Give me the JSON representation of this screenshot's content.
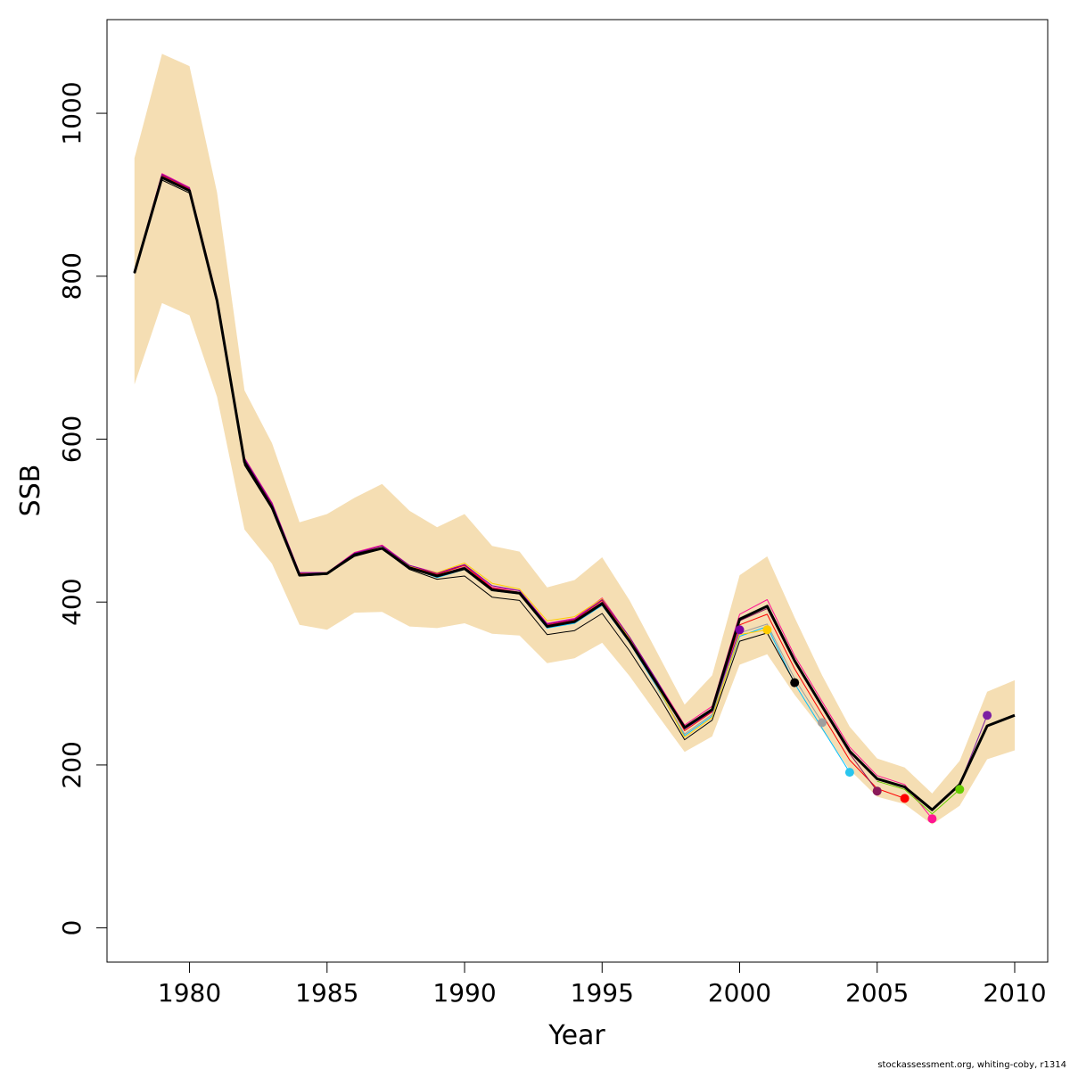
{
  "chart_data": {
    "type": "line",
    "xlabel": "Year",
    "ylabel": "SSB",
    "xlim": [
      1977,
      2011.2
    ],
    "ylim": [
      -42,
      1115
    ],
    "x_ticks": [
      1980,
      1985,
      1990,
      1995,
      2000,
      2005,
      2010
    ],
    "y_ticks": [
      0,
      200,
      400,
      600,
      800,
      1000
    ],
    "grid": false,
    "legend": "none",
    "credit": "stockassessment.org, whiting-coby, r1314",
    "colors": {
      "band": "#F5DEB3",
      "main": "#000000"
    },
    "confidence_band": {
      "x": [
        1978,
        1979,
        1980,
        1981,
        1982,
        1983,
        1984,
        1985,
        1986,
        1987,
        1988,
        1989,
        1990,
        1991,
        1992,
        1993,
        1994,
        1995,
        1996,
        1997,
        1998,
        1999,
        2000,
        2001,
        2002,
        2003,
        2004,
        2005,
        2006,
        2007,
        2008,
        2009,
        2010
      ],
      "lower": [
        667,
        767,
        752,
        652,
        489,
        447,
        372,
        366,
        387,
        388,
        370,
        368,
        374,
        361,
        359,
        325,
        331,
        350,
        309,
        262,
        216,
        235,
        323,
        336,
        286,
        243,
        194,
        161,
        152,
        127,
        150,
        207,
        218
      ],
      "upper": [
        945,
        1073,
        1058,
        903,
        660,
        595,
        498,
        508,
        528,
        545,
        512,
        492,
        508,
        469,
        462,
        418,
        427,
        455,
        402,
        338,
        274,
        310,
        433,
        456,
        381,
        310,
        247,
        208,
        197,
        165,
        205,
        290,
        304
      ]
    },
    "series": [
      {
        "color": "#000000",
        "width": 3,
        "x": [
          1978,
          1979,
          1980,
          1981,
          1982,
          1983,
          1984,
          1985,
          1986,
          1987,
          1988,
          1989,
          1990,
          1991,
          1992,
          1993,
          1994,
          1995,
          1996,
          1997,
          1998,
          1999,
          2000,
          2001,
          2002,
          2003,
          2004,
          2005,
          2006,
          2007,
          2008,
          2009,
          2010
        ],
        "values": [
          804,
          921,
          905,
          770,
          572,
          516,
          433,
          435,
          458,
          466,
          442,
          432,
          441,
          415,
          411,
          370,
          376,
          398,
          352,
          299,
          246,
          268,
          379,
          395,
          328,
          272,
          217,
          183,
          173,
          145,
          176,
          248,
          261
        ]
      },
      {
        "color": "#FF1493",
        "width": 1,
        "x": [
          1978,
          1979,
          1980,
          1981,
          1982,
          1983,
          1984,
          1985,
          1986,
          1987,
          1988,
          1989,
          1990,
          1991,
          1992,
          1993,
          1994,
          1995,
          1996,
          1997,
          1998,
          1999,
          2000,
          2001,
          2002,
          2003,
          2004,
          2005,
          2006,
          2007
        ],
        "values": [
          806,
          926,
          909,
          774,
          577,
          522,
          436,
          436,
          461,
          470,
          445,
          436,
          446,
          418,
          414,
          374,
          380,
          405,
          357,
          303,
          249,
          272,
          385,
          403,
          334,
          278,
          222,
          187,
          176,
          134
        ]
      },
      {
        "color": "#FF0000",
        "width": 1,
        "x": [
          1978,
          1979,
          1980,
          1981,
          1982,
          1983,
          1984,
          1985,
          1986,
          1987,
          1988,
          1989,
          1990,
          1991,
          1992,
          1993,
          1994,
          1995,
          1996,
          1997,
          1998,
          1999,
          2000,
          2001,
          2002,
          2003,
          2004,
          2005,
          2006
        ],
        "values": [
          805,
          924,
          907,
          772,
          575,
          520,
          435,
          435,
          459,
          469,
          444,
          434,
          445,
          417,
          412,
          372,
          378,
          402,
          355,
          301,
          242,
          265,
          372,
          385,
          318,
          262,
          206,
          171,
          159
        ]
      },
      {
        "color": "#8B1A5A",
        "width": 1,
        "x": [
          1978,
          1979,
          1980,
          1981,
          1982,
          1983,
          1984,
          1985,
          1986,
          1987,
          1988,
          1989,
          1990,
          1991,
          1992,
          1993,
          1994,
          1995,
          1996,
          1997,
          1998,
          1999,
          2000,
          2001,
          2002,
          2003,
          2004,
          2005
        ],
        "values": [
          805,
          923,
          906,
          771,
          573,
          518,
          434,
          435,
          459,
          467,
          443,
          433,
          443,
          416,
          412,
          371,
          377,
          400,
          354,
          300,
          245,
          267,
          377,
          392,
          326,
          270,
          214,
          168
        ]
      },
      {
        "color": "#00BFFF",
        "width": 1,
        "x": [
          1978,
          1979,
          1980,
          1981,
          1982,
          1983,
          1984,
          1985,
          1986,
          1987,
          1988,
          1989,
          1990,
          1991,
          1992,
          1993,
          1994,
          1995,
          1996,
          1997,
          1998,
          1999,
          2000,
          2001,
          2002,
          2003,
          2004
        ],
        "values": [
          804,
          920,
          904,
          769,
          571,
          515,
          433,
          435,
          458,
          466,
          442,
          430,
          440,
          414,
          410,
          368,
          374,
          396,
          350,
          295,
          236,
          260,
          358,
          370,
          300,
          245,
          191
        ]
      },
      {
        "color": "#9E9E9E",
        "width": 1,
        "x": [
          1978,
          1979,
          1980,
          1981,
          1982,
          1983,
          1984,
          1985,
          1986,
          1987,
          1988,
          1989,
          1990,
          1991,
          1992,
          1993,
          1994,
          1995,
          1996,
          1997,
          1998,
          1999,
          2000,
          2001,
          2002,
          2003
        ],
        "values": [
          804,
          920,
          904,
          769,
          570,
          515,
          432,
          435,
          458,
          466,
          442,
          431,
          442,
          414,
          410,
          369,
          375,
          397,
          351,
          296,
          238,
          262,
          362,
          373,
          306,
          252
        ]
      },
      {
        "color": "#000000",
        "width": 1,
        "x": [
          1978,
          1979,
          1980,
          1981,
          1982,
          1983,
          1984,
          1985,
          1986,
          1987,
          1988,
          1989,
          1990,
          1991,
          1992,
          1993,
          1994,
          1995,
          1996,
          1997,
          1998,
          1999,
          2000,
          2001,
          2002
        ],
        "values": [
          803,
          918,
          902,
          768,
          568,
          514,
          432,
          434,
          456,
          465,
          440,
          428,
          432,
          406,
          402,
          360,
          365,
          386,
          340,
          288,
          231,
          255,
          352,
          362,
          301
        ]
      },
      {
        "color": "#FFCC00",
        "width": 1,
        "x": [
          1978,
          1979,
          1980,
          1981,
          1982,
          1983,
          1984,
          1985,
          1986,
          1987,
          1988,
          1989,
          1990,
          1991,
          1992,
          1993,
          1994,
          1995,
          1996,
          1997,
          1998,
          1999,
          2000,
          2001
        ],
        "values": [
          805,
          922,
          905,
          770,
          573,
          518,
          434,
          436,
          459,
          467,
          444,
          436,
          448,
          423,
          416,
          377,
          382,
          404,
          355,
          297,
          234,
          258,
          360,
          366
        ]
      },
      {
        "color": "#7B00A0",
        "width": 1,
        "x": [
          1978,
          1979,
          1980,
          1981,
          1982,
          1983,
          1984,
          1985,
          1986,
          1987,
          1988,
          1989,
          1990,
          1991,
          1992,
          1993,
          1994,
          1995,
          1996,
          1997,
          1998,
          1999,
          2000
        ],
        "values": [
          806,
          925,
          908,
          773,
          576,
          521,
          436,
          436,
          460,
          469,
          445,
          435,
          446,
          420,
          414,
          373,
          379,
          403,
          357,
          303,
          244,
          266,
          366
        ]
      },
      {
        "color": "#66CC00",
        "width": 1,
        "x": [
          2005,
          2006,
          2007,
          2008
        ],
        "values": [
          180,
          170,
          140,
          170
        ]
      },
      {
        "color": "#7B1FA2",
        "width": 1,
        "x": [
          2008,
          2009
        ],
        "values": [
          176,
          261
        ]
      }
    ],
    "endpoints": [
      {
        "x": 2000,
        "y": 366,
        "color": "#7B00A0"
      },
      {
        "x": 2001,
        "y": 366,
        "color": "#FFCC00"
      },
      {
        "x": 2002,
        "y": 301,
        "color": "#000000"
      },
      {
        "x": 2003,
        "y": 252,
        "color": "#9E9E9E"
      },
      {
        "x": 2004,
        "y": 191,
        "color": "#29C5EE"
      },
      {
        "x": 2005,
        "y": 168,
        "color": "#8B1A5A"
      },
      {
        "x": 2006,
        "y": 159,
        "color": "#FF0000"
      },
      {
        "x": 2007,
        "y": 134,
        "color": "#FF1493"
      },
      {
        "x": 2008,
        "y": 170,
        "color": "#66CC00"
      },
      {
        "x": 2009,
        "y": 261,
        "color": "#7B1FA2"
      }
    ]
  }
}
